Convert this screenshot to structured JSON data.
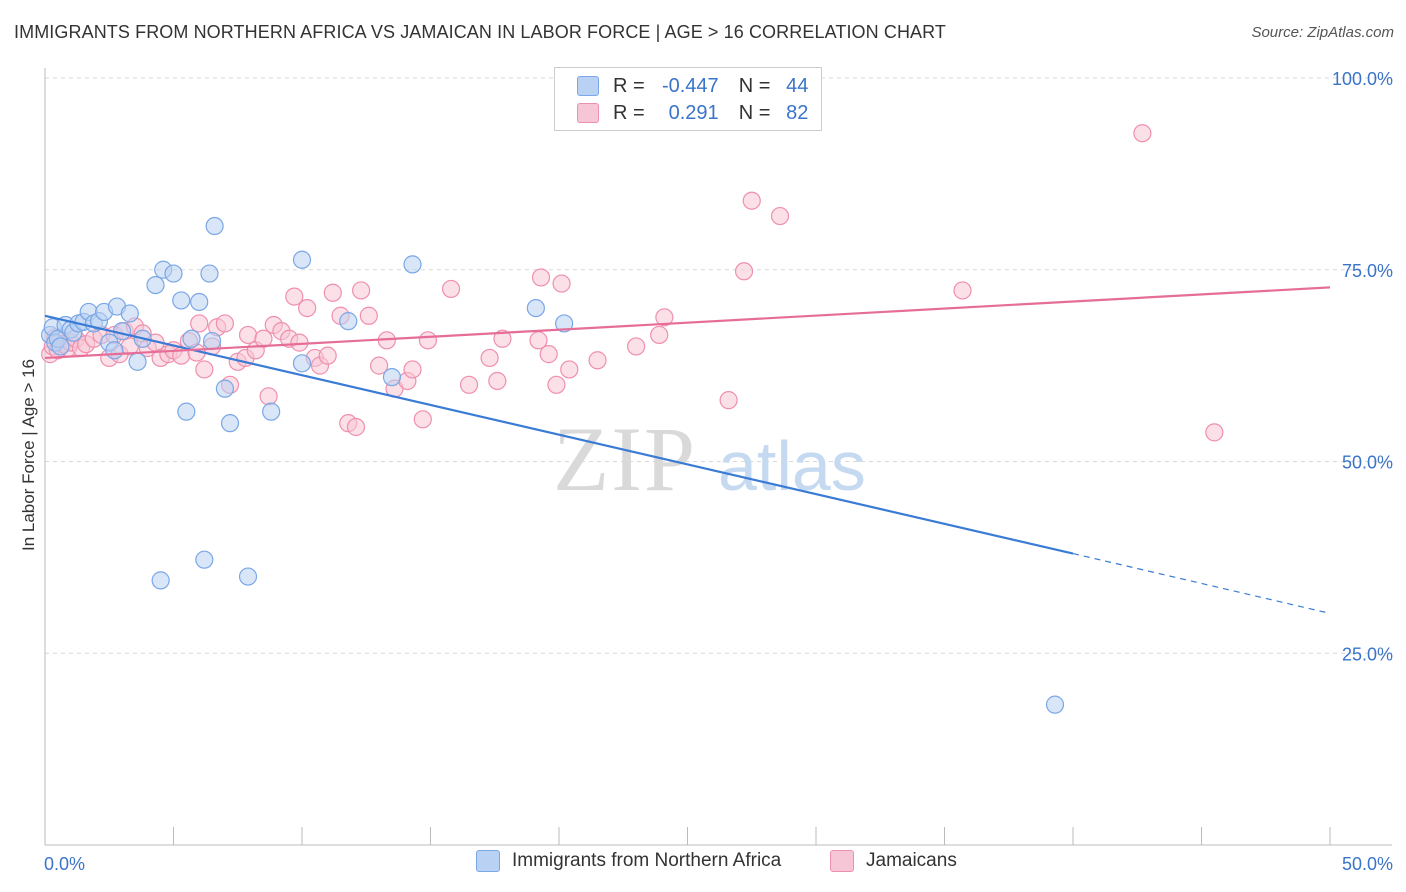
{
  "title": "IMMIGRANTS FROM NORTHERN AFRICA VS JAMAICAN IN LABOR FORCE | AGE > 16 CORRELATION CHART",
  "source": "Source: ZipAtlas.com",
  "watermark": {
    "zip": "ZIP",
    "atlas": "atlas"
  },
  "legend": {
    "rows": [
      {
        "r_label": "R =",
        "r_value": "-0.447",
        "n_label": "N =",
        "n_value": "44",
        "color": "#7aa7e6",
        "fill": "#b9d1f2"
      },
      {
        "r_label": "R =",
        "r_value": "0.291",
        "n_label": "N =",
        "n_value": "82",
        "color": "#ef8fae",
        "fill": "#f7c6d6"
      }
    ]
  },
  "bottom_legend": [
    "Immigrants from Northern Africa",
    "Jamaicans"
  ],
  "chart_data": {
    "type": "scatter",
    "title": "IMMIGRANTS FROM NORTHERN AFRICA VS JAMAICAN IN LABOR FORCE | AGE > 16 CORRELATION CHART",
    "xlabel": "",
    "ylabel": "In Labor Force | Age > 16",
    "xlim": [
      0,
      50
    ],
    "ylim": [
      0,
      100
    ],
    "x_tick_labels": [
      "0.0%",
      "50.0%"
    ],
    "y_ticks": [
      25,
      50,
      75,
      100
    ],
    "y_tick_labels": [
      "25.0%",
      "50.0%",
      "75.0%",
      "100.0%"
    ],
    "grid": true,
    "legend_position": "top-center",
    "series": [
      {
        "name": "Immigrants from Northern Africa",
        "color": "#3a7bd5",
        "fill": "#b9d1f2",
        "trend": {
          "x0": 0,
          "y0": 69.0,
          "x1": 40,
          "y1": 38.0,
          "dashed_to_x": 50,
          "dashed_to_y": 30.2
        },
        "points": [
          [
            0.2,
            66.5
          ],
          [
            0.3,
            67.5
          ],
          [
            0.4,
            65.5
          ],
          [
            0.5,
            66.0
          ],
          [
            0.6,
            65.0
          ],
          [
            0.8,
            67.8
          ],
          [
            1.0,
            67.2
          ],
          [
            1.1,
            66.8
          ],
          [
            1.3,
            68.0
          ],
          [
            1.5,
            68.2
          ],
          [
            1.7,
            69.5
          ],
          [
            1.9,
            68.0
          ],
          [
            2.1,
            68.3
          ],
          [
            2.3,
            69.5
          ],
          [
            2.5,
            65.5
          ],
          [
            2.7,
            64.5
          ],
          [
            2.8,
            70.2
          ],
          [
            3.0,
            67.0
          ],
          [
            3.3,
            69.3
          ],
          [
            3.6,
            63.0
          ],
          [
            3.8,
            66.0
          ],
          [
            4.3,
            73.0
          ],
          [
            4.5,
            34.5
          ],
          [
            4.6,
            75.0
          ],
          [
            5.0,
            74.5
          ],
          [
            5.3,
            71.0
          ],
          [
            5.5,
            56.5
          ],
          [
            5.7,
            66.0
          ],
          [
            6.0,
            70.8
          ],
          [
            6.2,
            37.2
          ],
          [
            6.4,
            74.5
          ],
          [
            6.5,
            65.7
          ],
          [
            6.6,
            80.7
          ],
          [
            7.0,
            59.5
          ],
          [
            7.2,
            55.0
          ],
          [
            7.9,
            35.0
          ],
          [
            8.8,
            56.5
          ],
          [
            10.0,
            76.3
          ],
          [
            10.0,
            62.8
          ],
          [
            11.8,
            68.3
          ],
          [
            13.5,
            61.0
          ],
          [
            14.3,
            75.7
          ],
          [
            19.1,
            70.0
          ],
          [
            20.2,
            68.0
          ],
          [
            39.3,
            18.3
          ]
        ]
      },
      {
        "name": "Jamaicans",
        "color": "#e56d98",
        "fill": "#f7c6d6",
        "trend": {
          "x0": 0,
          "y0": 63.5,
          "x1": 50,
          "y1": 72.7
        },
        "points": [
          [
            0.2,
            64.0
          ],
          [
            0.3,
            65.0
          ],
          [
            0.4,
            66.2
          ],
          [
            0.5,
            64.5
          ],
          [
            0.6,
            66.0
          ],
          [
            0.7,
            65.3
          ],
          [
            0.9,
            64.8
          ],
          [
            1.0,
            65.5
          ],
          [
            1.2,
            66.0
          ],
          [
            1.4,
            64.8
          ],
          [
            1.6,
            65.3
          ],
          [
            1.9,
            66.0
          ],
          [
            2.2,
            66.5
          ],
          [
            2.5,
            63.5
          ],
          [
            2.7,
            66.5
          ],
          [
            2.9,
            64.0
          ],
          [
            3.1,
            67.0
          ],
          [
            3.3,
            65.0
          ],
          [
            3.5,
            67.6
          ],
          [
            3.8,
            66.7
          ],
          [
            4.0,
            64.8
          ],
          [
            4.3,
            65.5
          ],
          [
            4.5,
            63.5
          ],
          [
            4.8,
            64.0
          ],
          [
            5.0,
            64.5
          ],
          [
            5.3,
            63.8
          ],
          [
            5.6,
            65.7
          ],
          [
            5.9,
            64.2
          ],
          [
            6.0,
            68.0
          ],
          [
            6.2,
            62.0
          ],
          [
            6.5,
            65.0
          ],
          [
            6.7,
            67.5
          ],
          [
            7.0,
            68.0
          ],
          [
            7.2,
            60.0
          ],
          [
            7.5,
            63.0
          ],
          [
            7.8,
            63.5
          ],
          [
            7.9,
            66.5
          ],
          [
            8.2,
            64.5
          ],
          [
            8.5,
            66.0
          ],
          [
            8.7,
            58.5
          ],
          [
            8.9,
            67.8
          ],
          [
            9.2,
            67.0
          ],
          [
            9.5,
            66.0
          ],
          [
            9.7,
            71.5
          ],
          [
            9.9,
            65.5
          ],
          [
            10.2,
            70.0
          ],
          [
            10.5,
            63.5
          ],
          [
            10.7,
            62.5
          ],
          [
            11.0,
            63.8
          ],
          [
            11.2,
            72.0
          ],
          [
            11.5,
            69.0
          ],
          [
            11.8,
            55.0
          ],
          [
            12.1,
            54.5
          ],
          [
            12.3,
            72.3
          ],
          [
            12.6,
            69.0
          ],
          [
            13.0,
            62.5
          ],
          [
            13.3,
            65.8
          ],
          [
            13.6,
            59.5
          ],
          [
            14.1,
            60.5
          ],
          [
            14.3,
            62.0
          ],
          [
            14.7,
            55.5
          ],
          [
            14.9,
            65.8
          ],
          [
            15.8,
            72.5
          ],
          [
            16.5,
            60.0
          ],
          [
            17.3,
            63.5
          ],
          [
            17.6,
            60.5
          ],
          [
            17.8,
            66.0
          ],
          [
            19.2,
            65.8
          ],
          [
            19.3,
            74.0
          ],
          [
            19.6,
            64.0
          ],
          [
            19.9,
            60.0
          ],
          [
            20.1,
            73.2
          ],
          [
            20.4,
            62.0
          ],
          [
            21.5,
            63.2
          ],
          [
            23.0,
            65.0
          ],
          [
            23.9,
            66.5
          ],
          [
            24.1,
            68.8
          ],
          [
            26.6,
            58.0
          ],
          [
            27.2,
            74.8
          ],
          [
            27.5,
            84.0
          ],
          [
            28.6,
            82.0
          ],
          [
            35.7,
            72.3
          ],
          [
            42.7,
            92.8
          ],
          [
            45.5,
            53.8
          ]
        ]
      }
    ]
  }
}
